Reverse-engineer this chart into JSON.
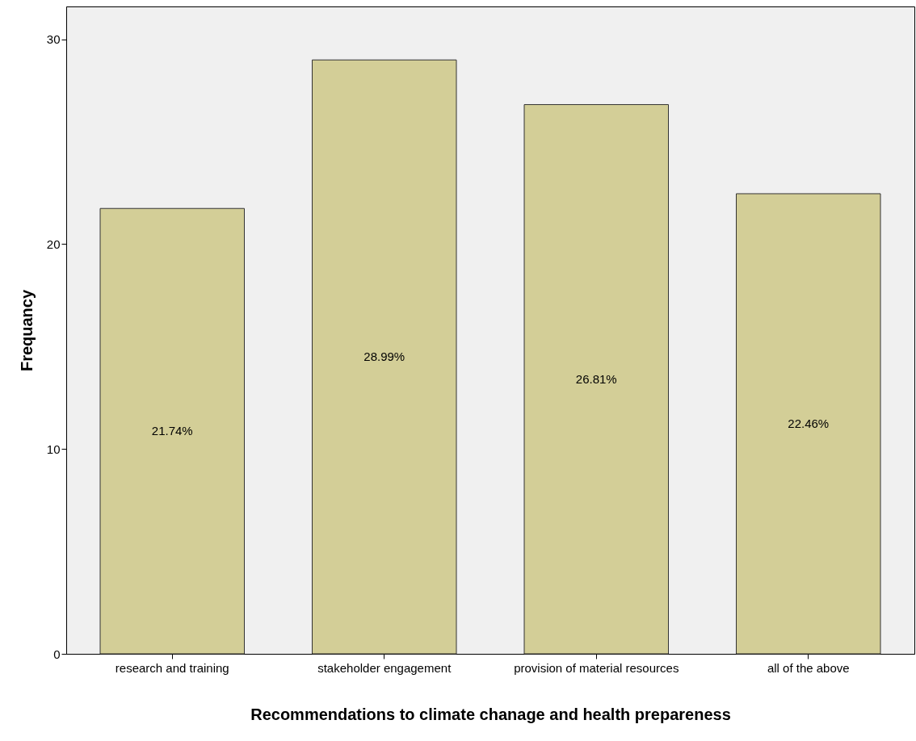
{
  "chart_data": {
    "type": "bar",
    "xlabel": "Recommendations to climate chanage and health prepareness",
    "ylabel": "Frequancy",
    "categories": [
      "research and training",
      "stakeholder engagement",
      "provision of material resources",
      "all of the above"
    ],
    "values": [
      21.74,
      28.99,
      26.81,
      22.46
    ],
    "value_labels": [
      "21.74%",
      "28.99%",
      "26.81%",
      "22.46%"
    ],
    "color": "#d3ce97",
    "ylim": [
      0,
      31.6
    ],
    "yticks": [
      0,
      10,
      20,
      30
    ]
  }
}
